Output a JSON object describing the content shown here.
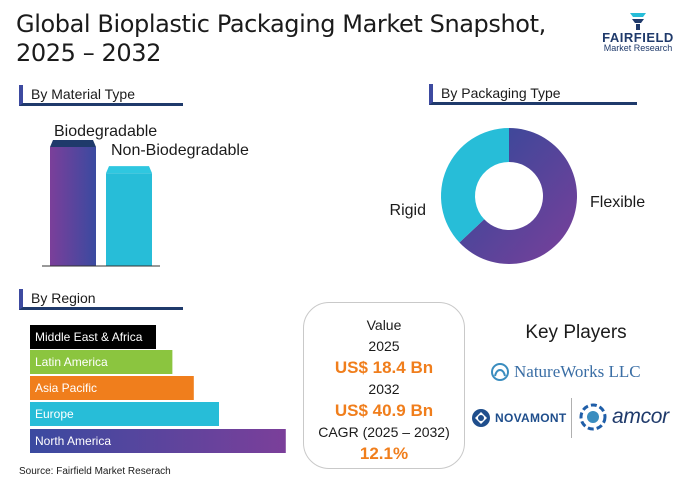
{
  "title": "Global Bioplastic Packaging Market Snapshot, 2025 – 2032",
  "logo": {
    "word": "FAIRFIELD",
    "sub": "Market Research"
  },
  "sections": {
    "material": "By Material Type",
    "packaging": "By Packaging Type",
    "region": "By Region"
  },
  "chart_data": [
    {
      "type": "bar",
      "title": "By Material Type",
      "categories": [
        "Biodegradable",
        "Non-Biodegradable"
      ],
      "values": [
        1.0,
        0.78
      ],
      "colors": [
        "#5b3f98",
        "#27bdd8"
      ]
    },
    {
      "type": "pie",
      "title": "By Packaging Type",
      "categories": [
        "Flexible",
        "Rigid"
      ],
      "values": [
        63,
        37
      ],
      "colors": [
        "#3a4aa0",
        "#27bdd8"
      ]
    },
    {
      "type": "bar",
      "orientation": "horizontal",
      "title": "By Region",
      "categories": [
        "Middle East & Africa",
        "Latin America",
        "Asia Pacific",
        "Europe",
        "North America"
      ],
      "values": [
        1.0,
        1.13,
        1.3,
        1.5,
        2.03
      ],
      "colors": [
        "#000000",
        "#8bc53f",
        "#f07e1c",
        "#27bdd8",
        "#5b3f98"
      ]
    }
  ],
  "value_box": {
    "label": "Value",
    "year1": "2025",
    "value1": "US$ 18.4 Bn",
    "year2": "2032",
    "value2": "US$ 40.9 Bn",
    "cagr_label": "CAGR (2025 – 2032)",
    "cagr": "12.1%"
  },
  "key_players": {
    "title": "Key Players",
    "names": [
      "NatureWorks LLC",
      "NOVAMONT",
      "amcor"
    ]
  },
  "source": "Source: Fairfield Market Reserach"
}
